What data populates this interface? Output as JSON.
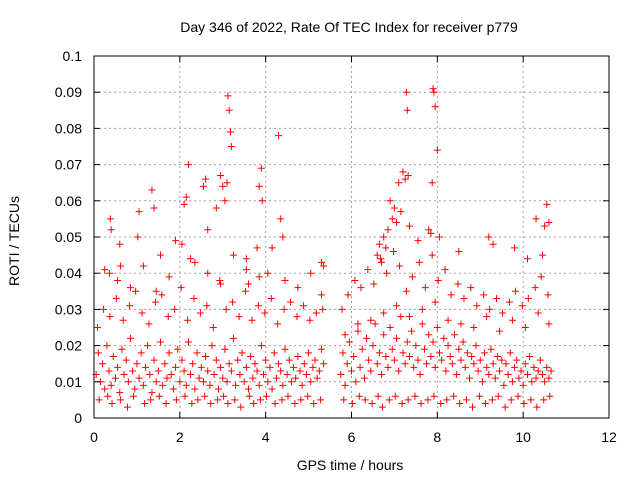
{
  "chart_data": {
    "type": "scatter",
    "title": "Day 346 of 2022, Rate Of TEC Index for receiver p779",
    "xlabel": "GPS time / hours",
    "ylabel": "ROTI / TECUs",
    "xlim": [
      0,
      12
    ],
    "ylim": [
      0,
      0.1
    ],
    "x_ticks": [
      "0",
      "2",
      "4",
      "6",
      "8",
      "10",
      "12"
    ],
    "y_ticks": [
      "0",
      "0.01",
      "0.02",
      "0.03",
      "0.04",
      "0.05",
      "0.06",
      "0.07",
      "0.08",
      "0.09",
      "0.1"
    ],
    "grid": true,
    "marker": "+",
    "color": "#ff0000",
    "series": [
      {
        "name": "ROTI",
        "x": [
          0.05,
          0.1,
          0.15,
          0.2,
          0.25,
          0.3,
          0.35,
          0.4,
          0.45,
          0.5,
          0.55,
          0.6,
          0.65,
          0.7,
          0.75,
          0.8,
          0.85,
          0.9,
          0.95,
          1.0,
          1.05,
          1.1,
          1.15,
          1.2,
          1.25,
          1.3,
          1.35,
          1.4,
          1.45,
          1.5,
          1.55,
          1.6,
          1.65,
          1.7,
          1.75,
          1.8,
          1.85,
          1.9,
          1.95,
          2.0,
          2.05,
          2.1,
          2.15,
          2.2,
          2.25,
          2.3,
          2.35,
          2.4,
          2.45,
          2.5,
          2.55,
          2.6,
          2.65,
          2.7,
          2.75,
          2.8,
          2.85,
          2.9,
          2.95,
          3.0,
          3.05,
          3.1,
          3.15,
          3.2,
          3.25,
          3.3,
          3.35,
          3.4,
          3.45,
          3.5,
          3.55,
          3.6,
          3.65,
          3.7,
          3.75,
          3.8,
          3.85,
          3.9,
          3.95,
          4.0,
          4.05,
          4.1,
          4.15,
          4.2,
          4.25,
          4.3,
          4.35,
          4.4,
          4.45,
          4.5,
          4.55,
          4.6,
          4.65,
          4.7,
          4.75,
          4.8,
          4.85,
          4.9,
          4.95,
          5.0,
          5.05,
          5.1,
          5.15,
          5.2,
          5.25,
          5.3,
          5.35,
          0.08,
          0.22,
          0.37,
          0.52,
          0.68,
          0.83,
          0.97,
          1.12,
          1.28,
          1.43,
          1.58,
          1.73,
          1.88,
          2.03,
          2.18,
          2.33,
          2.48,
          2.63,
          2.78,
          2.93,
          3.08,
          3.23,
          3.38,
          3.53,
          3.68,
          3.83,
          3.98,
          4.13,
          4.28,
          4.43,
          4.58,
          4.73,
          4.88,
          5.03,
          5.18,
          5.33,
          0.12,
          0.32,
          0.42,
          0.62,
          0.78,
          0.92,
          1.18,
          1.32,
          1.52,
          1.68,
          1.92,
          2.12,
          2.28,
          2.42,
          2.58,
          2.72,
          2.88,
          3.02,
          3.12,
          3.28,
          3.42,
          3.62,
          3.72,
          3.88,
          4.02,
          4.22,
          4.38,
          4.52,
          4.68,
          4.82,
          4.98,
          5.12,
          5.28,
          0.36,
          0.38,
          0.4,
          0.6,
          0.62,
          1.02,
          1.05,
          1.35,
          1.4,
          1.55,
          1.9,
          2.1,
          2.15,
          2.2,
          2.25,
          2.55,
          2.6,
          2.65,
          2.85,
          2.95,
          3.0,
          3.05,
          3.1,
          3.12,
          3.15,
          3.18,
          3.2,
          3.55,
          3.6,
          3.8,
          3.85,
          3.9,
          3.92,
          4.05,
          4.3,
          4.35,
          4.4,
          5.3,
          5.35,
          0.25,
          0.55,
          0.85,
          1.15,
          1.45,
          1.75,
          2.05,
          2.35,
          2.65,
          2.95,
          3.25,
          3.55,
          3.85,
          4.15,
          4.45,
          4.75,
          5.05,
          5.3,
          5.75,
          5.8,
          5.85,
          5.9,
          5.95,
          6.0,
          6.05,
          6.1,
          6.15,
          6.2,
          6.25,
          6.3,
          6.35,
          6.4,
          6.45,
          6.5,
          6.55,
          6.6,
          6.65,
          6.7,
          6.75,
          6.8,
          6.85,
          6.9,
          6.95,
          7.0,
          7.05,
          7.1,
          7.15,
          7.2,
          7.25,
          7.3,
          7.35,
          7.4,
          7.45,
          7.5,
          7.55,
          7.6,
          7.65,
          7.7,
          7.75,
          7.8,
          7.85,
          7.9,
          7.95,
          8.0,
          8.05,
          8.1,
          8.15,
          8.2,
          8.25,
          8.3,
          8.35,
          8.4,
          8.45,
          8.5,
          8.55,
          8.6,
          8.65,
          8.7,
          8.75,
          8.8,
          8.85,
          8.9,
          8.95,
          9.0,
          9.05,
          9.1,
          9.15,
          9.2,
          9.25,
          9.3,
          9.35,
          9.4,
          9.45,
          9.5,
          9.55,
          9.6,
          9.65,
          9.7,
          9.75,
          9.8,
          9.85,
          9.9,
          9.95,
          10.0,
          10.05,
          10.1,
          10.15,
          10.2,
          10.25,
          10.3,
          10.35,
          10.4,
          10.45,
          10.5,
          10.55,
          10.6,
          10.65,
          5.78,
          5.92,
          6.08,
          6.22,
          6.38,
          6.52,
          6.68,
          6.82,
          6.98,
          7.12,
          7.28,
          7.42,
          7.58,
          7.72,
          7.88,
          8.02,
          8.18,
          8.32,
          8.48,
          8.62,
          8.78,
          8.92,
          9.08,
          9.22,
          9.38,
          9.52,
          9.68,
          9.82,
          9.98,
          10.12,
          10.28,
          10.42,
          10.58,
          5.82,
          6.02,
          6.18,
          6.32,
          6.48,
          6.62,
          6.72,
          6.88,
          7.02,
          7.18,
          7.32,
          7.48,
          7.62,
          7.78,
          7.92,
          8.08,
          8.22,
          8.38,
          8.52,
          8.68,
          8.82,
          8.98,
          9.12,
          9.28,
          9.42,
          9.58,
          9.72,
          9.88,
          10.02,
          10.18,
          10.32,
          10.48,
          10.62,
          6.6,
          6.65,
          6.7,
          6.75,
          6.8,
          6.85,
          6.9,
          6.95,
          7.0,
          7.05,
          7.1,
          7.15,
          7.2,
          7.25,
          7.28,
          7.3,
          7.32,
          7.35,
          7.55,
          7.8,
          7.85,
          7.88,
          7.9,
          7.92,
          7.95,
          8.0,
          8.05,
          8.5,
          9.2,
          9.3,
          9.8,
          10.1,
          10.3,
          10.45,
          10.5,
          10.55,
          10.6,
          5.85,
          6.15,
          6.45,
          6.75,
          7.05,
          7.35,
          7.65,
          7.95,
          8.25,
          8.55,
          8.85,
          9.15,
          9.45,
          9.75,
          10.05,
          10.35,
          10.6
        ],
        "y": [
          0.012,
          0.018,
          0.01,
          0.015,
          0.008,
          0.02,
          0.013,
          0.009,
          0.017,
          0.011,
          0.014,
          0.007,
          0.019,
          0.012,
          0.016,
          0.01,
          0.022,
          0.013,
          0.008,
          0.015,
          0.011,
          0.018,
          0.009,
          0.014,
          0.02,
          0.012,
          0.007,
          0.016,
          0.01,
          0.013,
          0.021,
          0.009,
          0.015,
          0.011,
          0.018,
          0.012,
          0.008,
          0.014,
          0.019,
          0.01,
          0.016,
          0.013,
          0.009,
          0.021,
          0.012,
          0.015,
          0.008,
          0.018,
          0.011,
          0.014,
          0.01,
          0.017,
          0.013,
          0.009,
          0.02,
          0.012,
          0.016,
          0.008,
          0.014,
          0.011,
          0.019,
          0.01,
          0.015,
          0.013,
          0.022,
          0.009,
          0.016,
          0.012,
          0.018,
          0.01,
          0.014,
          0.008,
          0.017,
          0.011,
          0.015,
          0.013,
          0.009,
          0.02,
          0.012,
          0.016,
          0.01,
          0.014,
          0.008,
          0.018,
          0.011,
          0.015,
          0.013,
          0.009,
          0.019,
          0.012,
          0.016,
          0.01,
          0.014,
          0.011,
          0.017,
          0.013,
          0.009,
          0.015,
          0.012,
          0.018,
          0.01,
          0.014,
          0.016,
          0.011,
          0.013,
          0.019,
          0.015,
          0.025,
          0.03,
          0.028,
          0.033,
          0.027,
          0.031,
          0.035,
          0.029,
          0.026,
          0.032,
          0.034,
          0.028,
          0.03,
          0.036,
          0.027,
          0.033,
          0.029,
          0.031,
          0.025,
          0.038,
          0.03,
          0.032,
          0.028,
          0.035,
          0.027,
          0.031,
          0.029,
          0.033,
          0.026,
          0.03,
          0.032,
          0.028,
          0.031,
          0.027,
          0.029,
          0.03,
          0.005,
          0.006,
          0.004,
          0.005,
          0.003,
          0.006,
          0.004,
          0.005,
          0.006,
          0.004,
          0.005,
          0.006,
          0.004,
          0.005,
          0.006,
          0.004,
          0.005,
          0.006,
          0.004,
          0.005,
          0.003,
          0.006,
          0.004,
          0.005,
          0.006,
          0.004,
          0.005,
          0.006,
          0.004,
          0.005,
          0.006,
          0.004,
          0.005,
          0.04,
          0.055,
          0.052,
          0.048,
          0.042,
          0.05,
          0.057,
          0.063,
          0.058,
          0.045,
          0.049,
          0.059,
          0.061,
          0.07,
          0.044,
          0.064,
          0.066,
          0.052,
          0.058,
          0.067,
          0.064,
          0.06,
          0.065,
          0.089,
          0.085,
          0.079,
          0.075,
          0.044,
          0.037,
          0.047,
          0.064,
          0.069,
          0.06,
          0.04,
          0.078,
          0.055,
          0.05,
          0.043,
          0.042,
          0.041,
          0.038,
          0.036,
          0.042,
          0.035,
          0.039,
          0.048,
          0.043,
          0.04,
          0.037,
          0.045,
          0.041,
          0.039,
          0.047,
          0.038,
          0.036,
          0.04,
          0.034,
          0.012,
          0.018,
          0.009,
          0.015,
          0.021,
          0.013,
          0.017,
          0.01,
          0.024,
          0.014,
          0.019,
          0.011,
          0.022,
          0.016,
          0.013,
          0.02,
          0.026,
          0.015,
          0.018,
          0.012,
          0.023,
          0.017,
          0.014,
          0.025,
          0.019,
          0.016,
          0.022,
          0.013,
          0.028,
          0.018,
          0.015,
          0.021,
          0.017,
          0.024,
          0.014,
          0.02,
          0.016,
          0.012,
          0.026,
          0.019,
          0.015,
          0.023,
          0.017,
          0.021,
          0.014,
          0.025,
          0.018,
          0.016,
          0.022,
          0.013,
          0.02,
          0.017,
          0.015,
          0.023,
          0.012,
          0.019,
          0.016,
          0.021,
          0.014,
          0.018,
          0.011,
          0.017,
          0.015,
          0.02,
          0.013,
          0.016,
          0.01,
          0.018,
          0.014,
          0.012,
          0.019,
          0.015,
          0.011,
          0.017,
          0.013,
          0.016,
          0.009,
          0.015,
          0.012,
          0.018,
          0.01,
          0.014,
          0.016,
          0.011,
          0.013,
          0.009,
          0.015,
          0.012,
          0.017,
          0.01,
          0.014,
          0.011,
          0.013,
          0.016,
          0.012,
          0.01,
          0.014,
          0.011,
          0.013,
          0.03,
          0.034,
          0.038,
          0.036,
          0.041,
          0.037,
          0.044,
          0.04,
          0.046,
          0.042,
          0.035,
          0.039,
          0.043,
          0.036,
          0.045,
          0.038,
          0.041,
          0.034,
          0.037,
          0.033,
          0.036,
          0.031,
          0.034,
          0.03,
          0.033,
          0.029,
          0.032,
          0.035,
          0.031,
          0.033,
          0.036,
          0.039,
          0.034,
          0.005,
          0.004,
          0.006,
          0.005,
          0.004,
          0.006,
          0.003,
          0.005,
          0.006,
          0.004,
          0.005,
          0.006,
          0.004,
          0.005,
          0.006,
          0.004,
          0.005,
          0.006,
          0.004,
          0.005,
          0.003,
          0.006,
          0.004,
          0.005,
          0.006,
          0.003,
          0.005,
          0.006,
          0.004,
          0.005,
          0.003,
          0.005,
          0.006,
          0.045,
          0.048,
          0.043,
          0.05,
          0.047,
          0.052,
          0.06,
          0.055,
          0.058,
          0.054,
          0.065,
          0.057,
          0.068,
          0.066,
          0.09,
          0.085,
          0.067,
          0.053,
          0.049,
          0.052,
          0.051,
          0.065,
          0.091,
          0.09,
          0.086,
          0.074,
          0.05,
          0.046,
          0.05,
          0.048,
          0.047,
          0.044,
          0.055,
          0.045,
          0.053,
          0.059,
          0.054,
          0.023,
          0.026,
          0.027,
          0.029,
          0.031,
          0.028,
          0.03,
          0.032,
          0.027,
          0.026,
          0.025,
          0.028,
          0.024,
          0.027,
          0.025,
          0.029,
          0.026
        ]
      }
    ]
  }
}
